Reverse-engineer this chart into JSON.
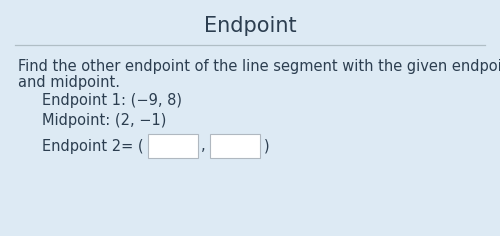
{
  "title": "Endpoint",
  "background_color": "#ddeaf4",
  "separator_color": "#b0bec5",
  "text_color": "#2c3e50",
  "body_line1": "Find the other endpoint of the line segment with the given endpoint",
  "body_line2": "and midpoint.",
  "line1": "Endpoint 1: (−9, 8)",
  "line2": "Midpoint: (2, −1)",
  "line3_prefix": "Endpoint 2= (",
  "line3_suffix": ")",
  "box_fill": "#ffffff",
  "box_edge": "#b0b8c0",
  "title_fontsize": 15,
  "body_fontsize": 10.5,
  "indent_fontsize": 10.5
}
